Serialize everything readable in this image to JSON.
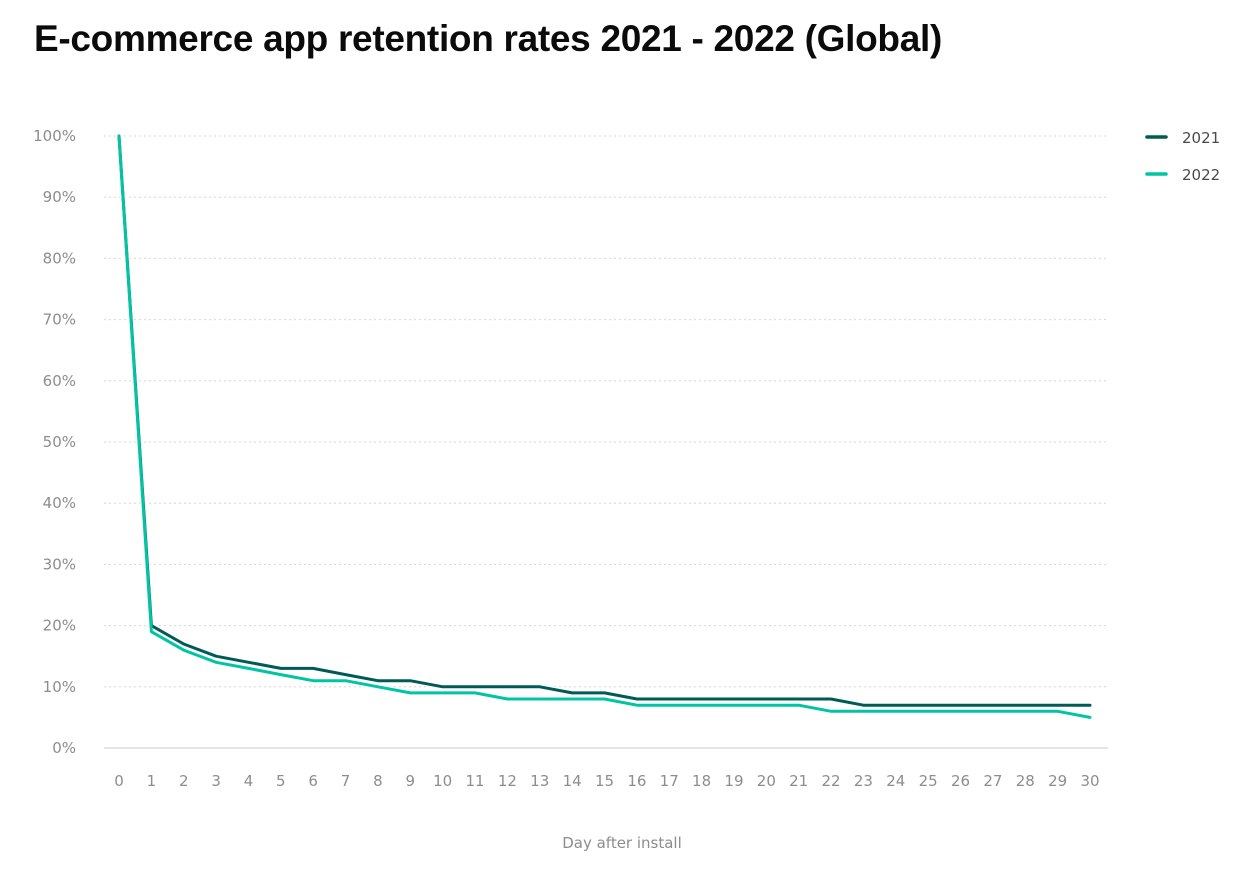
{
  "chart_data": {
    "type": "line",
    "title": "E-commerce app retention rates 2021 - 2022 (Global)",
    "xlabel": "Day after install",
    "ylabel": "",
    "x": [
      0,
      1,
      2,
      3,
      4,
      5,
      6,
      7,
      8,
      9,
      10,
      11,
      12,
      13,
      14,
      15,
      16,
      17,
      18,
      19,
      20,
      21,
      22,
      23,
      24,
      25,
      26,
      27,
      28,
      29,
      30
    ],
    "ylim": [
      0,
      100
    ],
    "yticks": [
      0,
      10,
      20,
      30,
      40,
      50,
      60,
      70,
      80,
      90,
      100
    ],
    "ytick_labels": [
      "0%",
      "10%",
      "20%",
      "30%",
      "40%",
      "50%",
      "60%",
      "70%",
      "80%",
      "90%",
      "100%"
    ],
    "grid": "horizontal-dotted",
    "legend_position": "top-right",
    "series": [
      {
        "name": "2021",
        "color": "#005a55",
        "values": [
          100,
          20,
          17,
          15,
          14,
          13,
          13,
          12,
          11,
          11,
          10,
          10,
          10,
          10,
          9,
          9,
          8,
          8,
          8,
          8,
          8,
          8,
          8,
          7,
          7,
          7,
          7,
          7,
          7,
          7,
          7
        ]
      },
      {
        "name": "2022",
        "color": "#00c4a4",
        "values": [
          100,
          19,
          16,
          14,
          13,
          12,
          11,
          11,
          10,
          9,
          9,
          9,
          8,
          8,
          8,
          8,
          7,
          7,
          7,
          7,
          7,
          7,
          6,
          6,
          6,
          6,
          6,
          6,
          6,
          6,
          5
        ]
      }
    ]
  }
}
